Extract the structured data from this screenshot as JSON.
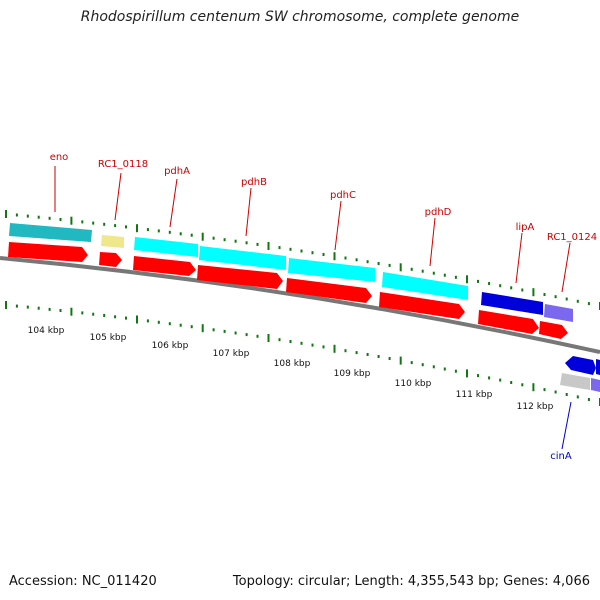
{
  "title": "Rhodospirillum centenum SW chromosome, complete genome",
  "footer": {
    "accession": "Accession: NC_011420",
    "summary": "Topology: circular; Length: 4,355,543 bp; Genes: 4,066"
  },
  "kbp_labels": [
    "104 kbp",
    "105 kbp",
    "106 kbp",
    "107 kbp",
    "108 kbp",
    "109 kbp",
    "110 kbp",
    "111 kbp",
    "112 kbp"
  ],
  "gene_labels": [
    "eno",
    "RC1_0118",
    "pdhA",
    "pdhB",
    "pdhC",
    "pdhD",
    "lipA",
    "RC1_0124",
    "cinA"
  ],
  "colors": {
    "gene_label": "#cc0000",
    "cina_label": "#0000cc",
    "tick": "#117711",
    "backbone": "#777777",
    "cds": "#ff0000",
    "teal": "#22b8c2",
    "cyan": "#00ffff",
    "khaki": "#f0e68c",
    "blue": "#0000dd",
    "slate": "#7b68ee",
    "grey": "#c8c8c8"
  }
}
